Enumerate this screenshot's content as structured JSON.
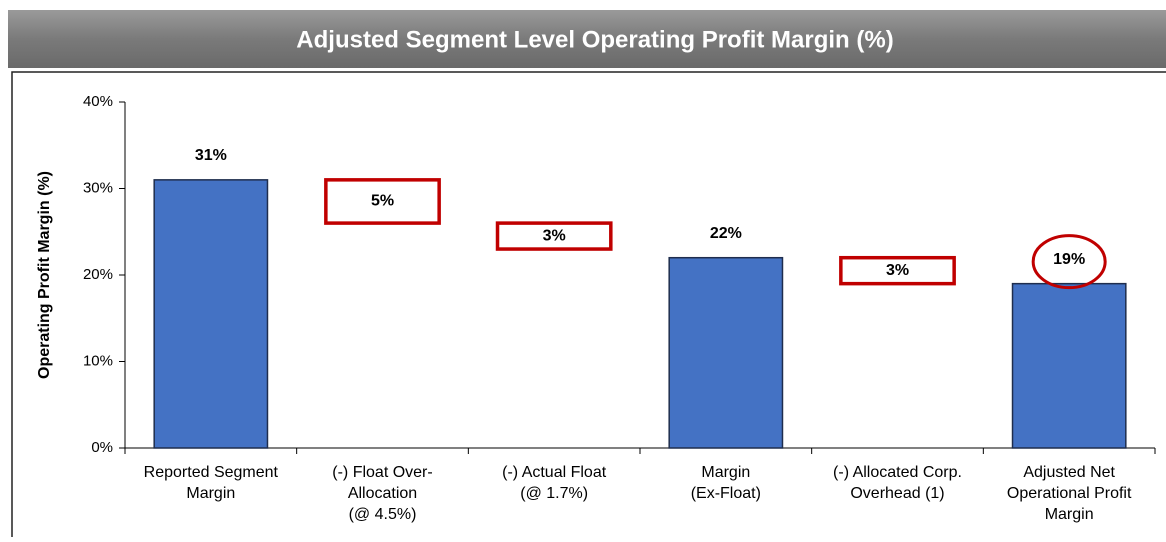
{
  "chart_data": {
    "type": "waterfall",
    "title": "Adjusted Segment Level Operating Profit Margin (%)",
    "y_label": "Operating Profit Margin (%)",
    "categories": [
      [
        "Reported Segment",
        "Margin"
      ],
      [
        "(-) Float Over-",
        "Allocation",
        "(@ 4.5%)"
      ],
      [
        "(-) Actual Float",
        "(@ 1.7%)"
      ],
      [
        "Margin",
        "(Ex-Float)"
      ],
      [
        "(-) Allocated Corp.",
        "Overhead (1)"
      ],
      [
        "Adjusted Net",
        "Operational Profit",
        "Margin"
      ]
    ],
    "kinds": [
      "total",
      "decrease",
      "decrease",
      "total",
      "decrease",
      "total"
    ],
    "values": [
      31,
      5,
      3,
      22,
      3,
      19
    ],
    "value_labels": [
      "31%",
      "5%",
      "3%",
      "22%",
      "3%",
      "19%"
    ],
    "color": "#4472c4",
    "decrease_color": "#c00000",
    "highlight": 5,
    "ylim": [
      0,
      40
    ],
    "yticks": [
      {
        "value": 0,
        "label": "0%"
      },
      {
        "value": 10,
        "label": "10%"
      },
      {
        "value": 20,
        "label": "20%"
      },
      {
        "value": 30,
        "label": "30%"
      },
      {
        "value": 40,
        "label": "40%"
      }
    ]
  }
}
